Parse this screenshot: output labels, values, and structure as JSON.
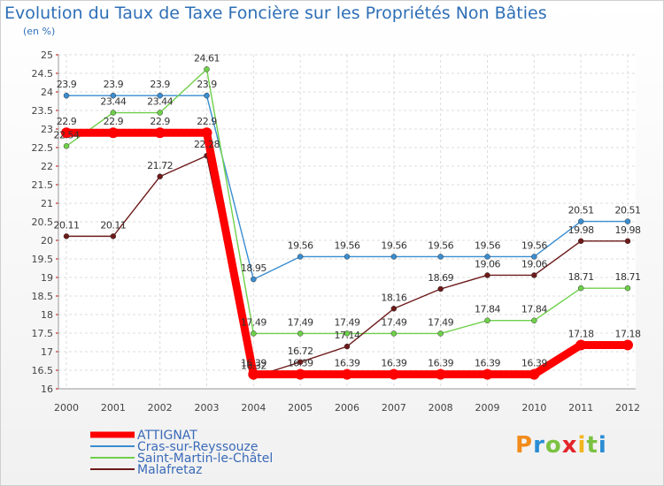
{
  "chart_data": {
    "type": "line",
    "title": "Evolution du Taux de Taxe Foncière sur les Propriétés Non Bâties",
    "ylabel": "(en %)",
    "xlabel": "",
    "categories": [
      "2000",
      "2001",
      "2002",
      "2003",
      "2004",
      "2005",
      "2006",
      "2007",
      "2008",
      "2009",
      "2010",
      "2011",
      "2012"
    ],
    "ylim": [
      16,
      25
    ],
    "yticks": [
      "16",
      "16.5",
      "17",
      "17.5",
      "18",
      "18.5",
      "19",
      "19.5",
      "20",
      "20.5",
      "21",
      "21.5",
      "22",
      "22.5",
      "23",
      "23.5",
      "24",
      "24.5",
      "25"
    ],
    "grid": true,
    "legend_position": "bottom-left",
    "series": [
      {
        "name": "ATTIGNAT",
        "color": "#ff0000",
        "values": [
          22.9,
          22.9,
          22.9,
          22.9,
          16.39,
          16.39,
          16.39,
          16.39,
          16.39,
          16.39,
          16.39,
          17.18,
          17.18
        ],
        "labels": [
          "22.9",
          "22.9",
          "22.9",
          "22.9",
          "16.39",
          "16.39",
          "16.39",
          "16.39",
          "16.39",
          "16.39",
          "16.39",
          "17.18",
          "17.18"
        ]
      },
      {
        "name": "Cras-sur-Reyssouze",
        "color": "#3a8dd0",
        "values": [
          23.9,
          23.9,
          23.9,
          23.9,
          18.95,
          19.56,
          19.56,
          19.56,
          19.56,
          19.56,
          19.56,
          20.51,
          20.51
        ],
        "labels": [
          "23.9",
          "23.9",
          "23.9",
          "23.9",
          "18.95",
          "19.56",
          "19.56",
          "19.56",
          "19.56",
          "19.56",
          "19.56",
          "20.51",
          "20.51"
        ]
      },
      {
        "name": "Saint-Martin-le-Châtel",
        "color": "#6fd04a",
        "values": [
          22.54,
          23.44,
          23.44,
          24.61,
          17.49,
          17.49,
          17.49,
          17.49,
          17.49,
          17.84,
          17.84,
          18.71,
          18.71
        ],
        "labels": [
          "22.54",
          "23.44",
          "23.44",
          "24.61",
          "17.49",
          "17.49",
          "17.49",
          "17.49",
          "17.49",
          "17.84",
          "17.84",
          "18.71",
          "18.71"
        ]
      },
      {
        "name": "Malafretaz",
        "color": "#6e1a1a",
        "values": [
          20.11,
          20.11,
          21.72,
          22.28,
          16.32,
          16.72,
          17.14,
          18.16,
          18.69,
          19.06,
          19.06,
          19.98,
          19.98
        ],
        "labels": [
          "20.11",
          "20.11",
          "21.72",
          "22.28",
          "16.32",
          "16.72",
          "17.14",
          "18.16",
          "18.69",
          "19.06",
          "19.06",
          "19.98",
          "19.98"
        ]
      }
    ]
  },
  "brand": {
    "letters": [
      "P",
      "r",
      "o",
      "x",
      "i",
      "t",
      "i"
    ],
    "colors": [
      "#f28c1c",
      "#2a8dd4",
      "#7cc242",
      "#e2262b",
      "#f2b61c",
      "#7cc242",
      "#2a8dd4"
    ]
  }
}
